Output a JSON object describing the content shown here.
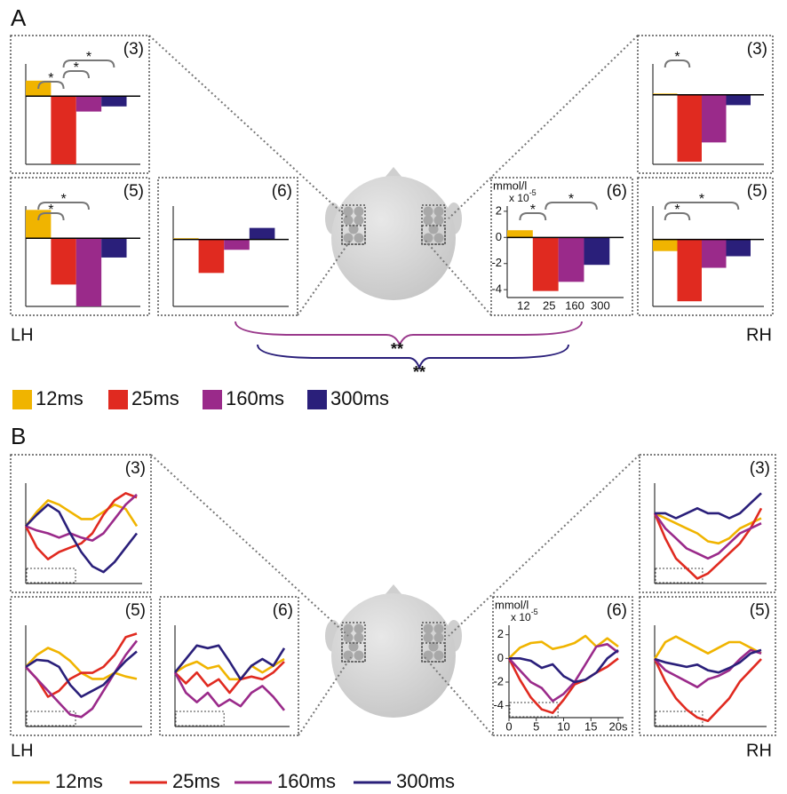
{
  "figure": {
    "panel_a": {
      "label": "A",
      "left": "LH",
      "right": "RH",
      "significance": [
        "**",
        "**"
      ],
      "significance_colors": [
        "#9a3a8c",
        "#2a1f7a"
      ],
      "legend": [
        "12ms",
        "25ms",
        "160ms",
        "300ms"
      ],
      "legend_colors": [
        "#f0b400",
        "#e02a20",
        "#9a2a8a",
        "#2a1f7a"
      ]
    },
    "panel_b": {
      "label": "B",
      "left": "LH",
      "right": "RH",
      "legend": [
        "12ms",
        "25ms",
        "160ms",
        "300ms"
      ],
      "legend_colors": [
        "#f0b400",
        "#e02a20",
        "#9a2a8a",
        "#2a1f7a"
      ]
    }
  },
  "chart_data": [
    {
      "type": "bar",
      "title": "(3)",
      "categories": [
        null,
        null,
        null,
        null
      ],
      "values": [
        1.2,
        -5.3,
        -1.2,
        -0.8
      ],
      "colors": [
        "#f0b400",
        "#e02a20",
        "#9a2a8a",
        "#2a1f7a"
      ],
      "ylim": [
        -5.3,
        2.5
      ],
      "annotations": [
        "*",
        "*",
        "*"
      ]
    },
    {
      "type": "bar",
      "title": "(5)",
      "categories": [
        null,
        null,
        null,
        null
      ],
      "values": [
        2.2,
        -3.6,
        -5.3,
        -1.5
      ],
      "colors": [
        "#f0b400",
        "#e02a20",
        "#9a2a8a",
        "#2a1f7a"
      ],
      "ylim": [
        -5.3,
        2.5
      ],
      "annotations": [
        "*",
        "*"
      ]
    },
    {
      "type": "bar",
      "title": "(6)",
      "categories": [
        null,
        null,
        null,
        null
      ],
      "values": [
        0.1,
        -2.6,
        -0.8,
        0.9
      ],
      "colors": [
        "#f0b400",
        "#e02a20",
        "#9a2a8a",
        "#2a1f7a"
      ],
      "ylim": [
        -5.2,
        2.6
      ]
    },
    {
      "type": "bar",
      "title": "(3)",
      "categories": [
        null,
        null,
        null,
        null
      ],
      "values": [
        0.1,
        -5.2,
        -3.7,
        -0.8
      ],
      "colors": [
        "#f0b400",
        "#e02a20",
        "#9a2a8a",
        "#2a1f7a"
      ],
      "ylim": [
        -5.4,
        2.4
      ],
      "annotations": [
        "*"
      ]
    },
    {
      "type": "bar",
      "title": "(6)",
      "y_label": "mmol/l",
      "y_scale": "x 10",
      "y_scale_exp": "-5",
      "categories": [
        "12",
        "25",
        "160",
        "300"
      ],
      "values": [
        0.55,
        -4.1,
        -3.4,
        -2.1
      ],
      "colors": [
        "#f0b400",
        "#e02a20",
        "#9a2a8a",
        "#2a1f7a"
      ],
      "ylim": [
        -4.6,
        2.4
      ],
      "yticks": [
        2,
        0,
        -2,
        -4
      ],
      "annotations": [
        "*",
        "*"
      ]
    },
    {
      "type": "bar",
      "title": "(5)",
      "categories": [
        null,
        null,
        null,
        null
      ],
      "values": [
        -0.9,
        -4.8,
        -2.2,
        -1.3
      ],
      "colors": [
        "#f0b400",
        "#e02a20",
        "#9a2a8a",
        "#2a1f7a"
      ],
      "ylim": [
        -5.2,
        2.6
      ],
      "annotations": [
        "*",
        "*"
      ]
    },
    {
      "type": "line",
      "title": "(3)",
      "x": [
        0,
        2,
        4,
        6,
        8,
        10,
        12,
        14,
        16,
        18,
        20
      ],
      "xlim": [
        0,
        20
      ],
      "ylim": [
        -4,
        3
      ],
      "series": [
        {
          "color": "#f0b400",
          "values": [
            0,
            1,
            1.8,
            1.5,
            1,
            0.5,
            0.5,
            1,
            1.5,
            1.2,
            0
          ]
        },
        {
          "color": "#e02a20",
          "values": [
            0,
            -1.5,
            -2.3,
            -1.8,
            -1.5,
            -1.2,
            -0.5,
            0.8,
            1.8,
            2.3,
            2
          ]
        },
        {
          "color": "#9a2a8a",
          "values": [
            0,
            -0.3,
            -0.5,
            -0.8,
            -0.5,
            -0.8,
            -1,
            -0.5,
            0.5,
            1.5,
            2.2
          ]
        },
        {
          "color": "#2a1f7a",
          "values": [
            0,
            0.8,
            1.5,
            1,
            -0.5,
            -1.8,
            -2.8,
            -3.2,
            -2.5,
            -1.5,
            -0.5
          ]
        }
      ]
    },
    {
      "type": "line",
      "title": "(5)",
      "x": [
        0,
        2,
        4,
        6,
        8,
        10,
        12,
        14,
        16,
        18,
        20
      ],
      "xlim": [
        0,
        20
      ],
      "ylim": [
        -5,
        3.5
      ],
      "series": [
        {
          "color": "#f0b400",
          "values": [
            0,
            1,
            1.6,
            1.2,
            0.5,
            -0.5,
            -1,
            -1,
            -0.5,
            -0.8,
            -1
          ]
        },
        {
          "color": "#e02a20",
          "values": [
            0,
            -1,
            -2.5,
            -2,
            -1,
            -0.5,
            -0.5,
            0,
            1,
            2.5,
            2.8
          ]
        },
        {
          "color": "#9a2a8a",
          "values": [
            0,
            -1,
            -2,
            -3,
            -4,
            -4.2,
            -3.5,
            -2,
            -0.5,
            1,
            2.2
          ]
        },
        {
          "color": "#2a1f7a",
          "values": [
            0,
            0.6,
            0.5,
            0,
            -1.5,
            -2.5,
            -2,
            -1.5,
            -0.5,
            0.5,
            1.3
          ]
        }
      ]
    },
    {
      "type": "line",
      "title": "(6)",
      "x": [
        0,
        2,
        4,
        6,
        8,
        10,
        12,
        14,
        16,
        18,
        20
      ],
      "xlim": [
        0,
        20
      ],
      "ylim": [
        -4,
        3.5
      ],
      "series": [
        {
          "color": "#f0b400",
          "values": [
            0,
            0.5,
            0.8,
            0.3,
            0.5,
            -0.5,
            -0.5,
            0.5,
            0,
            0.5,
            1
          ]
        },
        {
          "color": "#e02a20",
          "values": [
            0,
            -0.8,
            0,
            -1,
            -0.5,
            -1.5,
            -0.5,
            -0.3,
            -0.5,
            0,
            0.8
          ]
        },
        {
          "color": "#9a2a8a",
          "values": [
            0,
            -1.5,
            -2.2,
            -1.5,
            -2.5,
            -2,
            -2.5,
            -1.5,
            -1,
            -1.8,
            -2.8
          ]
        },
        {
          "color": "#2a1f7a",
          "values": [
            0,
            1,
            2,
            1.8,
            2,
            0.8,
            -0.5,
            0.5,
            1,
            0.5,
            1.8
          ]
        }
      ]
    },
    {
      "type": "line",
      "title": "(3)",
      "x": [
        0,
        2,
        4,
        6,
        8,
        10,
        12,
        14,
        16,
        18,
        20
      ],
      "xlim": [
        0,
        20
      ],
      "ylim": [
        -7,
        3
      ],
      "series": [
        {
          "color": "#f0b400",
          "values": [
            0,
            -0.5,
            -1,
            -1.5,
            -2,
            -2.8,
            -3,
            -2.5,
            -1.5,
            -1,
            -0.5
          ]
        },
        {
          "color": "#e02a20",
          "values": [
            0,
            -2.5,
            -4.5,
            -5.5,
            -6.5,
            -6,
            -5,
            -4,
            -3,
            -1.5,
            0.5
          ]
        },
        {
          "color": "#9a2a8a",
          "values": [
            0,
            -1.5,
            -2.5,
            -3.5,
            -4,
            -4.5,
            -4,
            -3,
            -2,
            -1.5,
            -1
          ]
        },
        {
          "color": "#2a1f7a",
          "values": [
            0,
            0,
            -0.5,
            0,
            0.5,
            0,
            0,
            -0.5,
            0,
            1,
            2
          ]
        }
      ]
    },
    {
      "type": "line",
      "title": "(6)",
      "y_label": "mmol/l",
      "y_scale": "x 10",
      "y_scale_exp": "-5",
      "x": [
        0,
        2,
        4,
        6,
        8,
        10,
        12,
        14,
        16,
        18,
        20
      ],
      "xlim": [
        0,
        20
      ],
      "ylim": [
        -5,
        2.8
      ],
      "xticks": [
        0,
        5,
        10,
        15,
        {
          "value": 20,
          "label": "20s"
        }
      ],
      "yticks": [
        2,
        0,
        -2,
        -4
      ],
      "series": [
        {
          "color": "#f0b400",
          "values": [
            0,
            0.9,
            1.3,
            1.4,
            0.8,
            1.0,
            1.3,
            1.9,
            1.0,
            1.7,
            1.0
          ]
        },
        {
          "color": "#e02a20",
          "values": [
            0,
            -1.8,
            -3.3,
            -4.3,
            -4.6,
            -3.5,
            -2.2,
            -1.8,
            -1.2,
            -0.7,
            0
          ]
        },
        {
          "color": "#9a2a8a",
          "values": [
            0,
            -1,
            -2,
            -2.5,
            -3.6,
            -3.0,
            -2,
            -0.5,
            1,
            1.2,
            0.5
          ]
        },
        {
          "color": "#2a1f7a",
          "values": [
            0,
            0,
            -0.2,
            -0.8,
            -0.5,
            -1.5,
            -2,
            -1.8,
            -1.2,
            0,
            0.7
          ]
        }
      ]
    },
    {
      "type": "line",
      "title": "(5)",
      "x": [
        0,
        2,
        4,
        6,
        8,
        10,
        12,
        14,
        16,
        18,
        20
      ],
      "xlim": [
        0,
        20
      ],
      "ylim": [
        -6,
        3
      ],
      "series": [
        {
          "color": "#f0b400",
          "values": [
            0,
            1.5,
            2,
            1.5,
            1,
            0.5,
            1,
            1.5,
            1.5,
            1,
            0.5
          ]
        },
        {
          "color": "#e02a20",
          "values": [
            0,
            -2,
            -3.5,
            -4.5,
            -5.2,
            -5.5,
            -4.5,
            -3.5,
            -2,
            -1,
            0
          ]
        },
        {
          "color": "#9a2a8a",
          "values": [
            0,
            -1,
            -1.5,
            -2,
            -2.5,
            -1.8,
            -1.5,
            -1,
            0,
            0.8,
            0.5
          ]
        },
        {
          "color": "#2a1f7a",
          "values": [
            0,
            -0.3,
            -0.5,
            -0.7,
            -0.5,
            -1,
            -1.2,
            -0.8,
            -0.3,
            0.5,
            0.8
          ]
        }
      ]
    }
  ]
}
